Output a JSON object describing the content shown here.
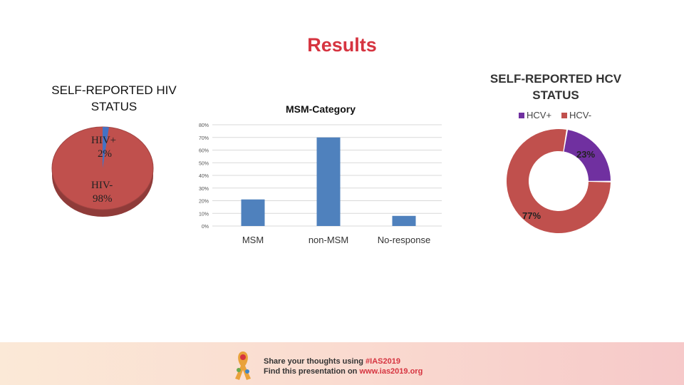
{
  "slide": {
    "title": "Results"
  },
  "chart_data": [
    {
      "type": "pie",
      "title": "SELF-REPORTED HIV STATUS",
      "categories": [
        "HIV+",
        "HIV-"
      ],
      "values": [
        2,
        98
      ],
      "labels": [
        {
          "name": "HIV+",
          "value": "2%"
        },
        {
          "name": "HIV-",
          "value": "98%"
        }
      ],
      "colors": [
        "#4472c4",
        "#c0504d"
      ]
    },
    {
      "type": "bar",
      "title": "MSM-Category",
      "categories": [
        "MSM",
        "non-MSM",
        "No-response"
      ],
      "values": [
        21,
        70,
        8
      ],
      "ylim": [
        0,
        80
      ],
      "yticks": [
        "0%",
        "10%",
        "20%",
        "30%",
        "40%",
        "50%",
        "60%",
        "70%",
        "80%"
      ],
      "grid": true,
      "color": "#4f81bd"
    },
    {
      "type": "pie",
      "title": "SELF-REPORTED HCV STATUS",
      "categories": [
        "HCV+",
        "HCV-"
      ],
      "values": [
        23,
        77
      ],
      "data_labels": [
        "23%",
        "77%"
      ],
      "legend": [
        "HCV+",
        "HCV-"
      ],
      "legend_position": "top-right",
      "colors": [
        "#7030a0",
        "#c0504d"
      ]
    }
  ],
  "footer": {
    "line1_prefix": "Share your thoughts using ",
    "line1_tag": "#IAS2019",
    "line2_prefix": "Find this presentation on ",
    "line2_link": "www.ias2019.org"
  }
}
